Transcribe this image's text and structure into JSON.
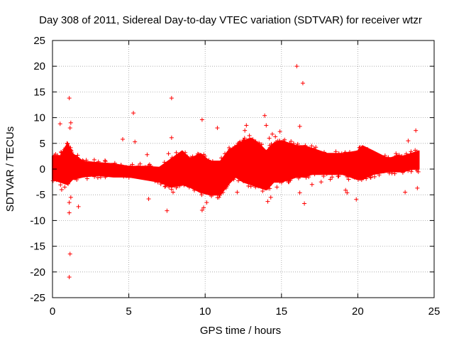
{
  "chart_data": {
    "type": "scatter",
    "title": "Day 308 of 2011, Sidereal Day-to-day VTEC variation (SDTVAR) for receiver wtzr",
    "xlabel": "GPS time / hours",
    "ylabel": "SDTVAR / TECUs",
    "xlim": [
      0,
      25
    ],
    "ylim": [
      -25,
      25
    ],
    "xticks": [
      0,
      5,
      10,
      15,
      20,
      25
    ],
    "yticks": [
      -25,
      -20,
      -15,
      -10,
      -5,
      0,
      5,
      10,
      15,
      20,
      25
    ],
    "grid": true,
    "marker": "+",
    "colors": {
      "series": "#ff0000",
      "grid": "#a0a0a0",
      "axes": "#000000"
    },
    "band": {
      "description": "dense SDTVAR band (upper and lower envelope per time, TECU)",
      "x": [
        0.0,
        0.5,
        1.0,
        1.3,
        2.0,
        3.0,
        4.0,
        5.0,
        6.0,
        7.0,
        7.8,
        8.5,
        9.0,
        9.7,
        10.3,
        11.0,
        11.5,
        12.0,
        12.5,
        13.0,
        13.5,
        14.0,
        14.5,
        15.0,
        15.5,
        16.0,
        16.5,
        17.0,
        18.0,
        19.0,
        20.0,
        20.3,
        21.0,
        22.0,
        22.5,
        23.0,
        23.5,
        24.0
      ],
      "upper": [
        2.5,
        2.5,
        5.0,
        3.0,
        1.5,
        1.2,
        1.0,
        0.5,
        0.5,
        0.3,
        2.0,
        3.5,
        2.0,
        3.0,
        1.5,
        1.5,
        3.5,
        4.5,
        5.5,
        6.0,
        5.0,
        3.5,
        5.0,
        5.5,
        5.0,
        4.5,
        4.5,
        4.0,
        3.0,
        3.0,
        3.5,
        4.5,
        3.5,
        2.0,
        2.5,
        2.5,
        3.0,
        3.5
      ],
      "lower": [
        -2.0,
        -2.5,
        -3.0,
        -2.0,
        -1.5,
        -1.2,
        -1.5,
        -1.5,
        -2.0,
        -2.5,
        -3.5,
        -3.0,
        -3.5,
        -4.5,
        -5.0,
        -5.0,
        -3.0,
        -1.5,
        -2.5,
        -3.0,
        -3.5,
        -4.0,
        -2.5,
        -2.5,
        -2.0,
        -1.5,
        -1.5,
        -1.0,
        -1.0,
        -1.0,
        -2.0,
        -2.0,
        -1.0,
        -0.5,
        -0.5,
        -0.5,
        0.0,
        0.0
      ]
    },
    "points": [
      [
        1.1,
        -21.0
      ],
      [
        1.15,
        -16.5
      ],
      [
        1.1,
        -8.5
      ],
      [
        1.1,
        -6.5
      ],
      [
        1.2,
        -5.5
      ],
      [
        1.1,
        13.8
      ],
      [
        1.2,
        9.0
      ],
      [
        1.15,
        8.0
      ],
      [
        1.7,
        -7.3
      ],
      [
        0.95,
        5.0
      ],
      [
        0.5,
        8.8
      ],
      [
        0.6,
        -4.0
      ],
      [
        0.8,
        -3.5
      ],
      [
        4.6,
        5.8
      ],
      [
        5.3,
        10.9
      ],
      [
        5.4,
        5.3
      ],
      [
        6.2,
        2.8
      ],
      [
        6.3,
        -5.8
      ],
      [
        7.5,
        -8.1
      ],
      [
        7.6,
        3.0
      ],
      [
        7.8,
        13.8
      ],
      [
        7.8,
        6.1
      ],
      [
        7.9,
        -4.5
      ],
      [
        9.8,
        9.6
      ],
      [
        9.8,
        -8.0
      ],
      [
        9.9,
        -7.5
      ],
      [
        10.1,
        -6.5
      ],
      [
        10.8,
        8.0
      ],
      [
        10.9,
        -5.5
      ],
      [
        12.1,
        -4.5
      ],
      [
        12.2,
        4.5
      ],
      [
        12.6,
        7.5
      ],
      [
        12.7,
        8.5
      ],
      [
        12.9,
        6.5
      ],
      [
        13.3,
        -3.5
      ],
      [
        13.9,
        10.4
      ],
      [
        14.0,
        8.5
      ],
      [
        14.1,
        -6.3
      ],
      [
        14.2,
        6.0
      ],
      [
        14.3,
        -5.5
      ],
      [
        14.4,
        6.8
      ],
      [
        14.6,
        6.3
      ],
      [
        14.9,
        7.3
      ],
      [
        14.7,
        -3.5
      ],
      [
        16.0,
        20.0
      ],
      [
        16.2,
        8.3
      ],
      [
        16.4,
        16.7
      ],
      [
        16.5,
        -6.7
      ],
      [
        16.2,
        -4.6
      ],
      [
        17.0,
        -3.0
      ],
      [
        17.6,
        -2.5
      ],
      [
        18.2,
        -2.0
      ],
      [
        19.2,
        -0.5
      ],
      [
        19.3,
        -1.5
      ],
      [
        19.3,
        -4.6
      ],
      [
        19.2,
        -4.1
      ],
      [
        19.4,
        -2.0
      ],
      [
        19.9,
        -5.9
      ],
      [
        19.9,
        1.0
      ],
      [
        23.1,
        -4.5
      ],
      [
        23.3,
        5.5
      ],
      [
        23.5,
        -0.5
      ],
      [
        23.8,
        7.5
      ],
      [
        23.9,
        -3.7
      ]
    ]
  }
}
